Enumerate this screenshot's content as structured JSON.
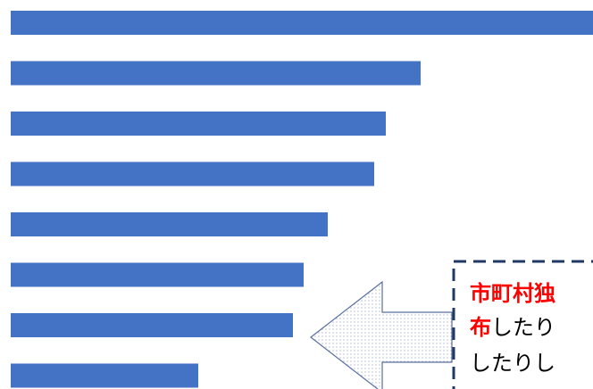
{
  "chart_data": {
    "type": "bar",
    "orientation": "horizontal",
    "values": [
      652,
      459,
      420,
      407,
      355,
      328,
      316,
      210
    ],
    "color": "#4472c4",
    "xlim": [
      0,
      652
    ]
  },
  "callout": {
    "lines": [
      [
        "市町村独"
      ],
      [
        "布",
        "したり"
      ],
      [
        "したりし"
      ]
    ]
  }
}
